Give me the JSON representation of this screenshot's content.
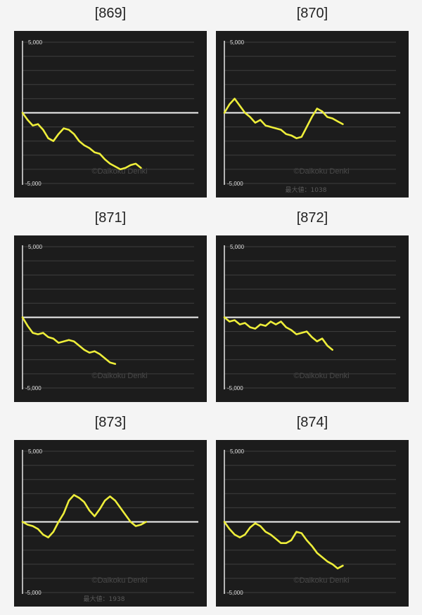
{
  "chart_data": [
    {
      "type": "line",
      "title": "[869]",
      "ytick_top": "5,000",
      "ytick_bottom": "-5,000",
      "ylim": [
        -5000,
        5000
      ],
      "watermark": "©Daikoku Denki",
      "caption": "",
      "x": [
        0,
        0.03,
        0.06,
        0.09,
        0.12,
        0.15,
        0.18,
        0.21,
        0.24,
        0.27,
        0.3,
        0.33,
        0.36,
        0.39,
        0.42,
        0.45,
        0.48,
        0.51,
        0.54,
        0.57,
        0.6,
        0.63,
        0.66,
        0.69
      ],
      "y": [
        0,
        -500,
        -900,
        -800,
        -1200,
        -1800,
        -2000,
        -1500,
        -1100,
        -1200,
        -1500,
        -2000,
        -2300,
        -2500,
        -2800,
        -2900,
        -3300,
        -3600,
        -3800,
        -4000,
        -3900,
        -3700,
        -3600,
        -3900
      ]
    },
    {
      "type": "line",
      "title": "[870]",
      "ytick_top": "5,000",
      "ytick_bottom": "-5,000",
      "ylim": [
        -5000,
        5000
      ],
      "watermark": "©Daikoku Denki",
      "caption": "最大値：1038",
      "x": [
        0,
        0.03,
        0.06,
        0.09,
        0.12,
        0.15,
        0.18,
        0.21,
        0.24,
        0.27,
        0.3,
        0.33,
        0.36,
        0.39,
        0.42,
        0.45,
        0.48,
        0.51,
        0.54,
        0.57,
        0.6,
        0.63,
        0.66,
        0.69
      ],
      "y": [
        0,
        600,
        1000,
        500,
        0,
        -300,
        -700,
        -500,
        -900,
        -1000,
        -1100,
        -1200,
        -1500,
        -1600,
        -1800,
        -1700,
        -1000,
        -300,
        300,
        100,
        -300,
        -400,
        -600,
        -800
      ]
    },
    {
      "type": "line",
      "title": "[871]",
      "ytick_top": "5,000",
      "ytick_bottom": "-5,000",
      "ylim": [
        -5000,
        5000
      ],
      "watermark": "©Daikoku Denki",
      "caption": "",
      "x": [
        0,
        0.03,
        0.06,
        0.09,
        0.12,
        0.15,
        0.18,
        0.21,
        0.24,
        0.27,
        0.3,
        0.33,
        0.36,
        0.39,
        0.42,
        0.45,
        0.48,
        0.51,
        0.54
      ],
      "y": [
        0,
        -600,
        -1100,
        -1200,
        -1100,
        -1400,
        -1500,
        -1800,
        -1700,
        -1600,
        -1700,
        -2000,
        -2300,
        -2500,
        -2400,
        -2600,
        -2900,
        -3200,
        -3300
      ]
    },
    {
      "type": "line",
      "title": "[872]",
      "ytick_top": "5,000",
      "ytick_bottom": "-5,000",
      "ylim": [
        -5000,
        5000
      ],
      "watermark": "©Daikoku Denki",
      "caption": "",
      "x": [
        0,
        0.03,
        0.06,
        0.09,
        0.12,
        0.15,
        0.18,
        0.21,
        0.24,
        0.27,
        0.3,
        0.33,
        0.36,
        0.39,
        0.42,
        0.45,
        0.48,
        0.51,
        0.54,
        0.57,
        0.6,
        0.63
      ],
      "y": [
        0,
        -300,
        -200,
        -500,
        -400,
        -700,
        -800,
        -500,
        -600,
        -300,
        -500,
        -300,
        -700,
        -900,
        -1200,
        -1100,
        -1000,
        -1400,
        -1700,
        -1500,
        -2000,
        -2300
      ]
    },
    {
      "type": "line",
      "title": "[873]",
      "ytick_top": "5,000",
      "ytick_bottom": "-5,000",
      "ylim": [
        -5000,
        5000
      ],
      "watermark": "©Daikoku Denki",
      "caption": "最大値：1938",
      "x": [
        0,
        0.03,
        0.06,
        0.09,
        0.12,
        0.15,
        0.18,
        0.21,
        0.24,
        0.27,
        0.3,
        0.33,
        0.36,
        0.39,
        0.42,
        0.45,
        0.48,
        0.51,
        0.54,
        0.57,
        0.6,
        0.63,
        0.66,
        0.69,
        0.72
      ],
      "y": [
        0,
        -200,
        -300,
        -500,
        -900,
        -1100,
        -700,
        0,
        600,
        1500,
        1900,
        1700,
        1400,
        800,
        400,
        900,
        1500,
        1800,
        1500,
        1000,
        500,
        0,
        -300,
        -200,
        0
      ]
    },
    {
      "type": "line",
      "title": "[874]",
      "ytick_top": "5,000",
      "ytick_bottom": "-5,000",
      "ylim": [
        -5000,
        5000
      ],
      "watermark": "©Daikoku Denki",
      "caption": "",
      "x": [
        0,
        0.03,
        0.06,
        0.09,
        0.12,
        0.15,
        0.18,
        0.21,
        0.24,
        0.27,
        0.3,
        0.33,
        0.36,
        0.39,
        0.42,
        0.45,
        0.48,
        0.51,
        0.54,
        0.57,
        0.6,
        0.63,
        0.66,
        0.69
      ],
      "y": [
        0,
        -500,
        -900,
        -1100,
        -900,
        -400,
        -100,
        -300,
        -700,
        -900,
        -1200,
        -1500,
        -1500,
        -1300,
        -700,
        -800,
        -1300,
        -1700,
        -2200,
        -2500,
        -2800,
        -3000,
        -3300,
        -3100
      ]
    }
  ]
}
